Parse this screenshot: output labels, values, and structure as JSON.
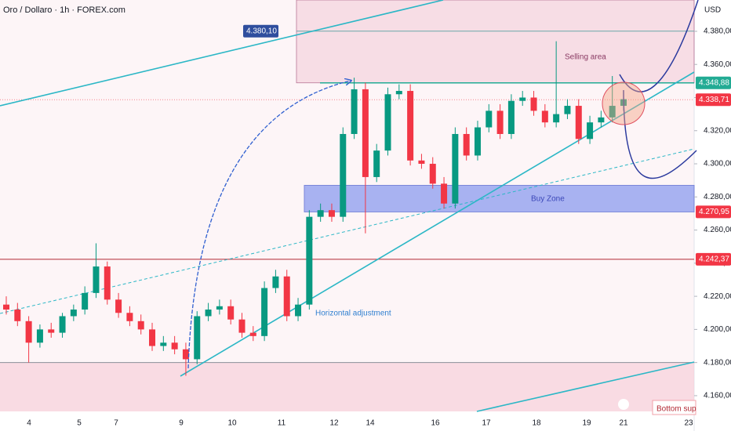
{
  "chart_data": {
    "type": "candlestick",
    "title": "Oro / Dollaro · 1h · FOREX.com",
    "currency": "USD",
    "up_color": "#089981",
    "down_color": "#f23645",
    "categories": [
      "4",
      "5",
      "7",
      "9",
      "10",
      "11",
      "12",
      "14",
      "16",
      "17",
      "18",
      "19",
      "21",
      "23"
    ],
    "ylim": [
      4150.5,
      4398.9
    ],
    "yticks": [
      {
        "value": 4160,
        "label": "4.160,00"
      },
      {
        "value": 4180,
        "label": "4.180,00"
      },
      {
        "value": 4200,
        "label": "4.200,00"
      },
      {
        "value": 4220,
        "label": "4.220,00"
      },
      {
        "value": 4240,
        "label": "4.240,00"
      },
      {
        "value": 4260,
        "label": "4.260,00"
      },
      {
        "value": 4280,
        "label": "4.280,00"
      },
      {
        "value": 4300,
        "label": "4.300,00"
      },
      {
        "value": 4320,
        "label": "4.320,00"
      },
      {
        "value": 4340,
        "label": "4.340,00"
      },
      {
        "value": 4360,
        "label": "4.360,00"
      },
      {
        "value": 4380,
        "label": "4.380,00"
      }
    ],
    "open": [
      4215,
      4212,
      4205,
      4192,
      4200,
      4198,
      4208,
      4212,
      4222,
      4238,
      4218,
      4210,
      4205,
      4200,
      4190,
      4192,
      4188,
      4182,
      4208,
      4212,
      4214,
      4206,
      4198,
      4196,
      4225,
      4232,
      4208,
      4215,
      4268,
      4272,
      4268,
      4318,
      4345,
      4292,
      4308,
      4342,
      4344,
      4302,
      4300,
      4288,
      4276,
      4318,
      4305,
      4322,
      4332,
      4318,
      4338,
      4340,
      4332,
      4325,
      4330,
      4335,
      4315,
      4325,
      4328,
      4335
    ],
    "high": [
      4220,
      4216,
      4208,
      4203,
      4204,
      4210,
      4215,
      4226,
      4252,
      4241,
      4222,
      4214,
      4209,
      4204,
      4196,
      4196,
      4192,
      4211,
      4216,
      4218,
      4218,
      4210,
      4202,
      4229,
      4236,
      4236,
      4219,
      4272,
      4276,
      4276,
      4322,
      4352,
      4349,
      4312,
      4346,
      4348,
      4348,
      4306,
      4304,
      4292,
      4322,
      4322,
      4326,
      4336,
      4336,
      4342,
      4344,
      4344,
      4336,
      4374,
      4339,
      4339,
      4329,
      4332,
      4353,
      4343
    ],
    "low": [
      4209,
      4202,
      4180,
      4189,
      4195,
      4195,
      4205,
      4209,
      4219,
      4215,
      4207,
      4202,
      4197,
      4187,
      4187,
      4185,
      4172,
      4179,
      4205,
      4209,
      4203,
      4195,
      4193,
      4193,
      4222,
      4205,
      4205,
      4212,
      4265,
      4265,
      4265,
      4315,
      4258,
      4289,
      4305,
      4339,
      4299,
      4297,
      4285,
      4273,
      4273,
      4302,
      4302,
      4319,
      4315,
      4315,
      4335,
      4329,
      4322,
      4322,
      4327,
      4312,
      4312,
      4322,
      4325,
      4332
    ],
    "close": [
      4212,
      4205,
      4192,
      4200,
      4198,
      4208,
      4212,
      4222,
      4238,
      4218,
      4210,
      4205,
      4200,
      4190,
      4192,
      4188,
      4182,
      4208,
      4212,
      4214,
      4206,
      4198,
      4196,
      4225,
      4232,
      4208,
      4215,
      4268,
      4272,
      4268,
      4318,
      4345,
      4292,
      4308,
      4342,
      4344,
      4302,
      4300,
      4288,
      4276,
      4318,
      4305,
      4322,
      4332,
      4318,
      4338,
      4340,
      4332,
      4325,
      4330,
      4335,
      4315,
      4325,
      4328,
      4335,
      4339
    ],
    "price_labels": [
      {
        "value": 4380.1,
        "label": "4.380,10",
        "color": "#2f4e9e"
      },
      {
        "value": 4348.88,
        "label": "4.348,88",
        "color": "#22ab94"
      },
      {
        "value": 4338.71,
        "label": "4.338,71",
        "color": "#f23645"
      },
      {
        "value": 4270.95,
        "label": "4.270,95",
        "color": "#f23645"
      },
      {
        "value": 4242.37,
        "label": "4.242,37",
        "color": "#f23645"
      }
    ],
    "annotations": [
      "Selling area",
      "Buy Zone",
      "Horizontal adjustment",
      "Bottom sup"
    ]
  }
}
